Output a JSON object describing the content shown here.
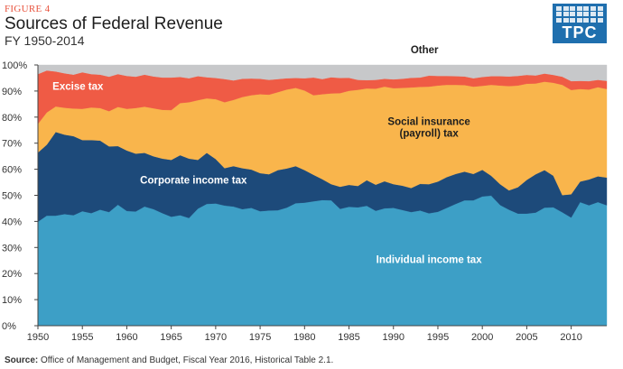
{
  "header": {
    "figure_label": "FIGURE 4",
    "title": "Sources of Federal Revenue",
    "subtitle": "FY 1950-2014"
  },
  "logo": {
    "text": "TPC",
    "color": "#1f6fae"
  },
  "source": {
    "label": "Source:",
    "text": "Office of Management and Budget, Fiscal Year 2016, Historical Table 2.1."
  },
  "chart_data": {
    "type": "area",
    "stacked": true,
    "percent": true,
    "grid": false,
    "legend": "inline labels",
    "x": [
      1950,
      1951,
      1952,
      1953,
      1954,
      1955,
      1956,
      1957,
      1958,
      1959,
      1960,
      1961,
      1962,
      1963,
      1964,
      1965,
      1966,
      1967,
      1968,
      1969,
      1970,
      1971,
      1972,
      1973,
      1974,
      1975,
      1976,
      1977,
      1978,
      1979,
      1980,
      1981,
      1982,
      1983,
      1984,
      1985,
      1986,
      1987,
      1988,
      1989,
      1990,
      1991,
      1992,
      1993,
      1994,
      1995,
      1996,
      1997,
      1998,
      1999,
      2000,
      2001,
      2002,
      2003,
      2004,
      2005,
      2006,
      2007,
      2008,
      2009,
      2010,
      2011,
      2012,
      2013,
      2014
    ],
    "xlim": [
      1950,
      2014
    ],
    "x_ticks": [
      "1950",
      "1955",
      "1960",
      "1965",
      "1970",
      "1975",
      "1980",
      "1985",
      "1990",
      "1995",
      "2000",
      "2005",
      "2010"
    ],
    "ylim": [
      0,
      100
    ],
    "y_ticks": [
      "0%",
      "10%",
      "20%",
      "30%",
      "40%",
      "50%",
      "60%",
      "70%",
      "80%",
      "90%",
      "100%"
    ],
    "series": [
      {
        "name": "Individual income tax",
        "color": "#3d9fc6",
        "values": [
          39.9,
          42.2,
          42.2,
          42.8,
          42.4,
          43.9,
          43.2,
          44.5,
          43.6,
          46.4,
          44.0,
          43.8,
          45.7,
          44.7,
          43.2,
          41.8,
          42.4,
          41.3,
          44.9,
          46.7,
          46.9,
          46.1,
          45.7,
          44.7,
          45.2,
          43.9,
          44.2,
          44.3,
          45.3,
          47.0,
          47.2,
          47.7,
          48.2,
          48.1,
          44.8,
          45.6,
          45.4,
          46.0,
          44.1,
          45.0,
          45.2,
          44.4,
          43.6,
          44.2,
          43.1,
          43.7,
          45.2,
          46.7,
          48.1,
          48.1,
          49.6,
          49.9,
          46.3,
          44.5,
          43.0,
          43.0,
          43.4,
          45.3,
          45.4,
          43.5,
          41.5,
          47.4,
          46.2,
          47.4,
          46.2
        ]
      },
      {
        "name": "Corporate income tax",
        "color": "#1d4a7a",
        "values": [
          26.5,
          27.2,
          32.1,
          30.5,
          30.3,
          27.3,
          28.0,
          26.5,
          25.2,
          22.5,
          23.2,
          22.2,
          20.6,
          20.3,
          20.9,
          21.8,
          23.0,
          22.8,
          18.7,
          19.6,
          17.0,
          14.3,
          15.5,
          15.7,
          14.7,
          14.6,
          13.9,
          15.4,
          15.0,
          14.2,
          12.5,
          10.2,
          8.0,
          6.2,
          8.5,
          8.4,
          8.2,
          9.8,
          10.0,
          10.4,
          9.1,
          9.3,
          9.2,
          10.2,
          11.2,
          11.6,
          11.8,
          11.5,
          11.0,
          10.1,
          10.2,
          7.6,
          8.0,
          7.4,
          10.1,
          12.9,
          14.7,
          14.4,
          12.1,
          6.6,
          8.9,
          7.9,
          9.9,
          9.9,
          10.6
        ]
      },
      {
        "name": "Social insurance\n(payroll) tax",
        "color": "#f9b54c",
        "values": [
          11.0,
          12.4,
          9.8,
          10.3,
          10.6,
          12.0,
          12.5,
          12.5,
          13.5,
          15.0,
          16.0,
          17.5,
          17.7,
          18.4,
          18.7,
          19.1,
          20.0,
          21.6,
          22.9,
          20.9,
          23.0,
          25.3,
          25.4,
          27.3,
          28.5,
          30.3,
          30.5,
          29.9,
          30.3,
          30.0,
          30.5,
          30.5,
          32.6,
          34.8,
          35.9,
          36.1,
          36.9,
          35.2,
          36.8,
          36.3,
          36.8,
          37.5,
          38.6,
          37.2,
          37.4,
          36.8,
          35.4,
          34.2,
          33.2,
          33.5,
          32.2,
          34.9,
          37.8,
          40.0,
          39.0,
          36.9,
          34.8,
          33.9,
          35.7,
          42.3,
          40.0,
          35.5,
          34.5,
          34.2,
          34.0
        ]
      },
      {
        "name": "Excise tax",
        "color": "#ef5b45",
        "values": [
          19.1,
          16.1,
          13.4,
          13.2,
          13.0,
          14.0,
          12.8,
          12.8,
          13.2,
          12.6,
          12.6,
          12.0,
          12.3,
          12.2,
          12.4,
          12.5,
          10.0,
          9.2,
          9.2,
          8.1,
          8.1,
          8.9,
          7.5,
          7.0,
          6.4,
          5.9,
          5.7,
          5.0,
          4.3,
          3.8,
          4.7,
          6.8,
          5.8,
          6.2,
          5.8,
          5.0,
          3.8,
          3.2,
          3.4,
          3.0,
          3.4,
          3.5,
          3.7,
          3.6,
          4.2,
          3.7,
          3.4,
          3.3,
          3.3,
          3.2,
          3.4,
          3.3,
          3.6,
          3.7,
          3.7,
          3.4,
          3.1,
          3.1,
          3.0,
          3.1,
          3.4,
          3.1,
          3.2,
          2.8,
          3.1
        ]
      },
      {
        "name": "Other",
        "color": "#c7c8ca",
        "values": [
          3.5,
          2.1,
          2.5,
          3.2,
          3.7,
          2.8,
          3.5,
          3.7,
          4.5,
          3.5,
          4.2,
          4.5,
          3.7,
          4.4,
          4.8,
          4.8,
          4.6,
          5.1,
          4.3,
          4.7,
          5.0,
          5.4,
          5.9,
          5.3,
          5.2,
          5.3,
          5.7,
          5.4,
          5.1,
          5.0,
          5.1,
          4.8,
          5.4,
          4.7,
          5.0,
          4.9,
          5.7,
          5.8,
          5.7,
          5.3,
          5.5,
          5.3,
          4.9,
          4.8,
          4.1,
          4.2,
          4.2,
          4.3,
          4.4,
          5.1,
          4.6,
          4.3,
          4.3,
          4.4,
          4.2,
          3.8,
          4.0,
          3.3,
          3.8,
          4.5,
          6.2,
          6.1,
          6.2,
          5.7,
          6.1
        ]
      }
    ],
    "labels": [
      {
        "series": "Other",
        "text": "Other",
        "x": 1993.5,
        "y": 104.5,
        "color": "#222222",
        "bold": true
      },
      {
        "series": "Excise tax",
        "text": "Excise tax",
        "x": 1954.5,
        "y": 90.5,
        "color": "#ffffff",
        "bold": true
      },
      {
        "series": "Social insurance\n(payroll) tax",
        "text": "Social insurance",
        "x": 1994,
        "y": 77,
        "color": "#1d1d1d",
        "bold": true
      },
      {
        "series": "Social insurance\n(payroll) tax",
        "text": "(payroll) tax",
        "x": 1994,
        "y": 72.5,
        "color": "#1d1d1d",
        "bold": true
      },
      {
        "series": "Corporate income tax",
        "text": "Corporate income tax",
        "x": 1967.5,
        "y": 54.5,
        "color": "#ffffff",
        "bold": true
      },
      {
        "series": "Individual income tax",
        "text": "Individual income tax",
        "x": 1994,
        "y": 24,
        "color": "#ffffff",
        "bold": true
      }
    ]
  }
}
